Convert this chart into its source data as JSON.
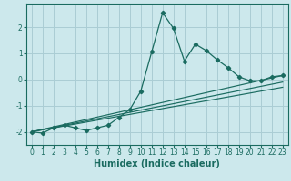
{
  "xlabel": "Humidex (Indice chaleur)",
  "bg_color": "#cce8ec",
  "grid_color": "#aacdd4",
  "line_color": "#1a6b60",
  "spine_color": "#1a6b60",
  "xlim": [
    -0.5,
    23.5
  ],
  "ylim": [
    -2.5,
    2.9
  ],
  "yticks": [
    -2,
    -1,
    0,
    1,
    2
  ],
  "xticks": [
    0,
    1,
    2,
    3,
    4,
    5,
    6,
    7,
    8,
    9,
    10,
    11,
    12,
    13,
    14,
    15,
    16,
    17,
    18,
    19,
    20,
    21,
    22,
    23
  ],
  "lines": [
    {
      "x": [
        0,
        1,
        2,
        3,
        4,
        5,
        6,
        7,
        8,
        9,
        10,
        11,
        12,
        13,
        14,
        15,
        16,
        17,
        18,
        19,
        20,
        21,
        22,
        23
      ],
      "y": [
        -2.0,
        -2.05,
        -1.85,
        -1.75,
        -1.85,
        -1.95,
        -1.85,
        -1.75,
        -1.45,
        -1.15,
        -0.45,
        1.05,
        2.55,
        1.95,
        0.7,
        1.35,
        1.1,
        0.75,
        0.45,
        0.1,
        -0.05,
        -0.05,
        0.1,
        0.15
      ],
      "marker": true
    },
    {
      "x": [
        0,
        23
      ],
      "y": [
        -2.0,
        0.15
      ],
      "marker": false
    },
    {
      "x": [
        0,
        23
      ],
      "y": [
        -2.0,
        -0.1
      ],
      "marker": false
    },
    {
      "x": [
        0,
        23
      ],
      "y": [
        -2.0,
        -0.3
      ],
      "marker": false
    }
  ],
  "xlabel_fontsize": 7,
  "tick_fontsize": 5.5
}
